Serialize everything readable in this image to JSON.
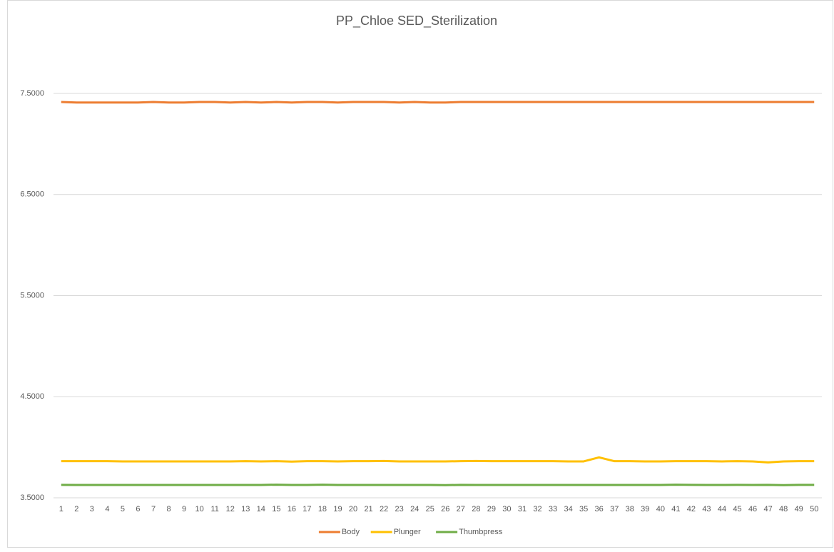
{
  "chart_data": {
    "type": "line",
    "title": "PP_Chloe SED_Sterilization",
    "categories": [
      1,
      2,
      3,
      4,
      5,
      6,
      7,
      8,
      9,
      10,
      11,
      12,
      13,
      14,
      15,
      16,
      17,
      18,
      19,
      20,
      21,
      22,
      23,
      24,
      25,
      26,
      27,
      28,
      29,
      30,
      31,
      32,
      33,
      34,
      35,
      36,
      37,
      38,
      39,
      40,
      41,
      42,
      43,
      44,
      45,
      46,
      47,
      48,
      49,
      50
    ],
    "series": [
      {
        "name": "Body",
        "color": "#ed7d31",
        "values": [
          7.415,
          7.41,
          7.41,
          7.41,
          7.41,
          7.41,
          7.415,
          7.41,
          7.41,
          7.415,
          7.415,
          7.41,
          7.415,
          7.41,
          7.415,
          7.41,
          7.415,
          7.415,
          7.41,
          7.415,
          7.415,
          7.415,
          7.41,
          7.415,
          7.41,
          7.41,
          7.415,
          7.415,
          7.415,
          7.415,
          7.415,
          7.415,
          7.415,
          7.415,
          7.415,
          7.415,
          7.415,
          7.415,
          7.415,
          7.415,
          7.415,
          7.415,
          7.415,
          7.415,
          7.415,
          7.415,
          7.415,
          7.415,
          7.415,
          7.415
        ]
      },
      {
        "name": "Plunger",
        "color": "#ffc000",
        "values": [
          3.862,
          3.862,
          3.862,
          3.862,
          3.86,
          3.86,
          3.86,
          3.86,
          3.86,
          3.86,
          3.86,
          3.86,
          3.862,
          3.86,
          3.862,
          3.858,
          3.862,
          3.862,
          3.86,
          3.862,
          3.862,
          3.864,
          3.86,
          3.86,
          3.86,
          3.86,
          3.862,
          3.864,
          3.862,
          3.862,
          3.862,
          3.862,
          3.862,
          3.86,
          3.86,
          3.9,
          3.862,
          3.862,
          3.86,
          3.86,
          3.862,
          3.862,
          3.862,
          3.86,
          3.862,
          3.86,
          3.85,
          3.86,
          3.862,
          3.862
        ]
      },
      {
        "name": "Thumbpress",
        "color": "#70ad47",
        "values": [
          3.628,
          3.627,
          3.627,
          3.627,
          3.627,
          3.627,
          3.627,
          3.627,
          3.627,
          3.627,
          3.627,
          3.627,
          3.627,
          3.627,
          3.63,
          3.627,
          3.627,
          3.63,
          3.627,
          3.627,
          3.627,
          3.627,
          3.627,
          3.627,
          3.627,
          3.625,
          3.628,
          3.627,
          3.627,
          3.627,
          3.627,
          3.627,
          3.627,
          3.627,
          3.627,
          3.627,
          3.627,
          3.627,
          3.627,
          3.627,
          3.63,
          3.628,
          3.627,
          3.627,
          3.628,
          3.627,
          3.628,
          3.625,
          3.628,
          3.628
        ]
      }
    ],
    "ylim": [
      3.5,
      8.0
    ],
    "yticks": [
      {
        "value": 3.5,
        "label": "3.5000"
      },
      {
        "value": 4.5,
        "label": "4.5000"
      },
      {
        "value": 5.5,
        "label": "5.5000"
      },
      {
        "value": 6.5,
        "label": "6.5000"
      },
      {
        "value": 7.5,
        "label": "7.5000"
      }
    ],
    "grid": true,
    "legend": "bottom"
  }
}
